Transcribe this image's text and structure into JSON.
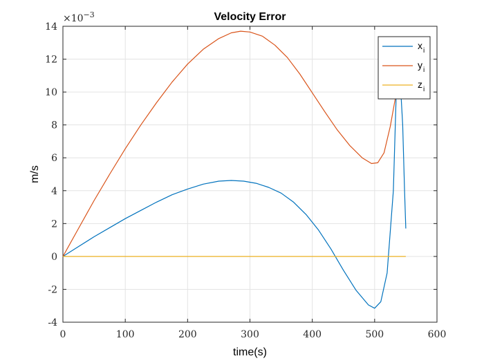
{
  "chart_data": {
    "type": "line",
    "title": "Velocity Error",
    "xlabel": "time(s)",
    "ylabel": "m/s",
    "exponent_label": "×10",
    "exponent_power": "−3",
    "xlim": [
      0,
      600
    ],
    "ylim": [
      -4,
      14
    ],
    "xticks": [
      0,
      100,
      200,
      300,
      400,
      500,
      600
    ],
    "yticks": [
      -4,
      -2,
      0,
      2,
      4,
      6,
      8,
      10,
      12,
      14
    ],
    "grid": true,
    "legend_position": "top-right",
    "series": [
      {
        "name": "x",
        "subscript": "i",
        "color": "#0072bd",
        "x": [
          0,
          25,
          50,
          75,
          100,
          125,
          150,
          175,
          200,
          225,
          250,
          270,
          290,
          310,
          330,
          350,
          370,
          390,
          410,
          430,
          450,
          470,
          490,
          500,
          510,
          520,
          530,
          535,
          540,
          545,
          548,
          550
        ],
        "y": [
          0,
          0.6,
          1.2,
          1.75,
          2.3,
          2.8,
          3.3,
          3.75,
          4.1,
          4.4,
          4.58,
          4.62,
          4.58,
          4.45,
          4.2,
          3.85,
          3.3,
          2.55,
          1.6,
          0.45,
          -0.85,
          -2.05,
          -2.95,
          -3.15,
          -2.75,
          -1.0,
          4.0,
          10.4,
          11.4,
          8.0,
          4.0,
          1.7
        ]
      },
      {
        "name": "y",
        "subscript": "i",
        "color": "#d95319",
        "x": [
          0,
          25,
          50,
          75,
          100,
          125,
          150,
          175,
          200,
          225,
          250,
          270,
          285,
          300,
          320,
          340,
          360,
          380,
          400,
          420,
          440,
          460,
          480,
          495,
          505,
          515,
          525,
          535,
          540
        ],
        "y": [
          0,
          1.7,
          3.4,
          5.0,
          6.55,
          8.0,
          9.35,
          10.6,
          11.7,
          12.6,
          13.25,
          13.6,
          13.7,
          13.65,
          13.4,
          12.85,
          12.1,
          11.1,
          9.95,
          8.8,
          7.7,
          6.75,
          6.0,
          5.65,
          5.7,
          6.3,
          7.9,
          10.0,
          11.3
        ]
      },
      {
        "name": "z",
        "subscript": "i",
        "color": "#edb120",
        "x": [
          0,
          550
        ],
        "y": [
          0,
          0
        ]
      }
    ]
  }
}
